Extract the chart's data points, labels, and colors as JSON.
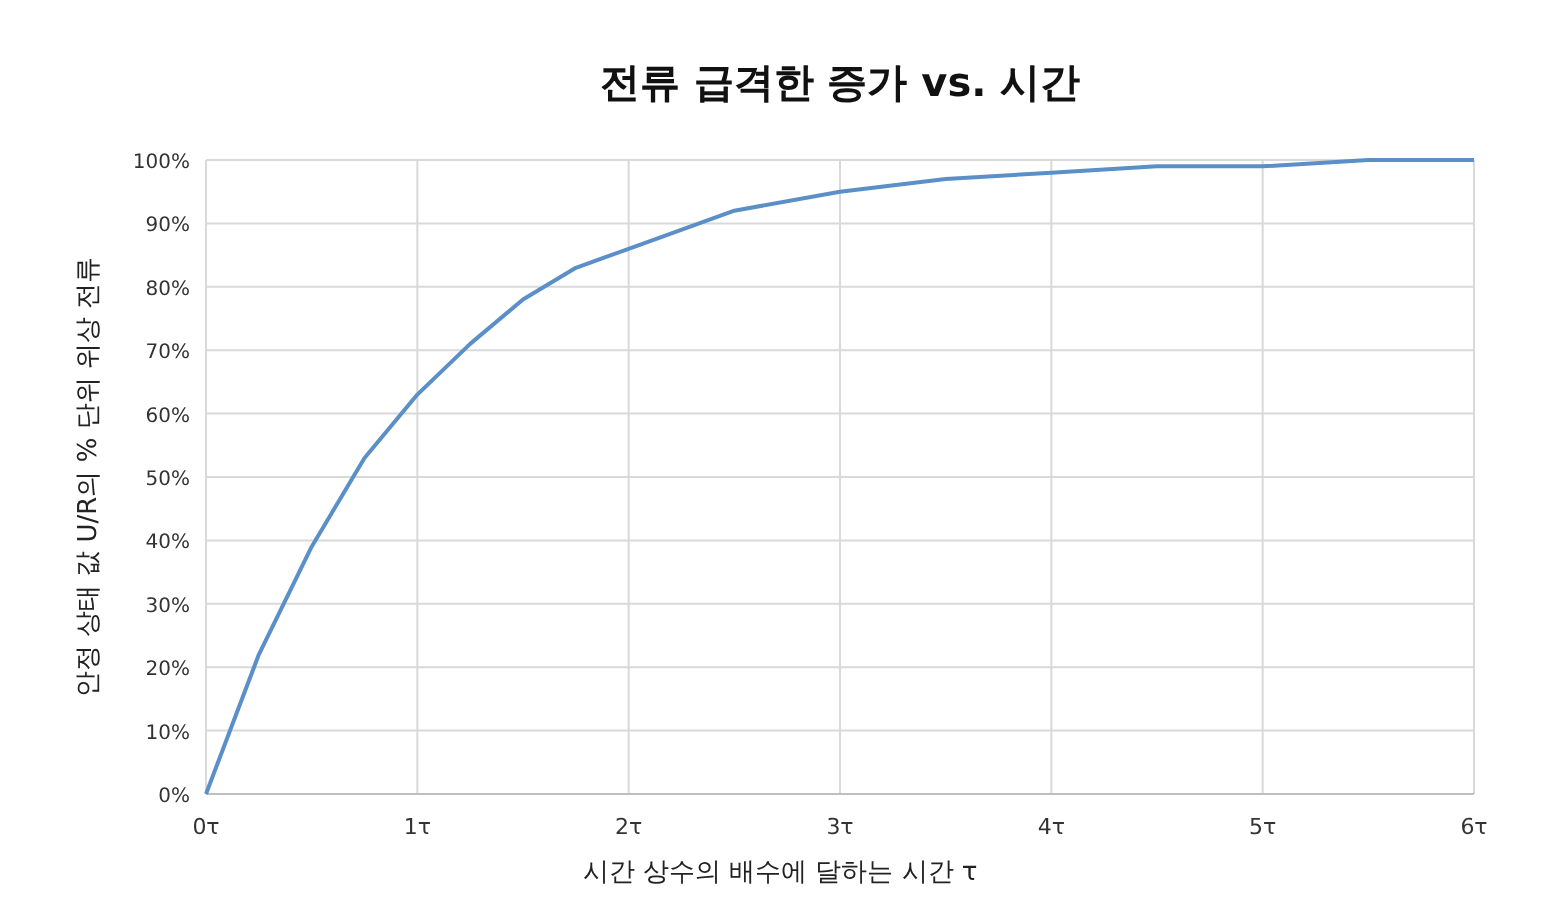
{
  "chart_data": {
    "type": "line",
    "title": "전류 급격한 증가 vs. 시간",
    "xlabel": "시간 상수의 배수에 달하는 시간  τ",
    "ylabel": "안정 상태 값 U/R의 % 단위 위상 전류",
    "x": [
      0,
      0.25,
      0.5,
      0.75,
      1,
      1.25,
      1.5,
      1.75,
      2,
      2.5,
      3,
      3.5,
      4,
      4.5,
      5,
      5.5,
      6
    ],
    "series": [
      {
        "color": "#5b8fc7",
        "values": [
          0,
          22,
          39,
          53,
          63,
          71,
          78,
          83,
          86,
          92,
          95,
          97,
          98,
          99,
          99,
          100,
          100
        ]
      }
    ],
    "xlim": [
      0,
      6
    ],
    "ylim": [
      0,
      100
    ],
    "xticks": [
      {
        "value": 0,
        "label": "0τ"
      },
      {
        "value": 1,
        "label": "1τ"
      },
      {
        "value": 2,
        "label": "2τ"
      },
      {
        "value": 3,
        "label": "3τ"
      },
      {
        "value": 4,
        "label": "4τ"
      },
      {
        "value": 5,
        "label": "5τ"
      },
      {
        "value": 6,
        "label": "6τ"
      }
    ],
    "yticks": [
      {
        "value": 0,
        "label": "0%"
      },
      {
        "value": 10,
        "label": "10%"
      },
      {
        "value": 20,
        "label": "20%"
      },
      {
        "value": 30,
        "label": "30%"
      },
      {
        "value": 40,
        "label": "40%"
      },
      {
        "value": 50,
        "label": "50%"
      },
      {
        "value": 60,
        "label": "60%"
      },
      {
        "value": 70,
        "label": "70%"
      },
      {
        "value": 80,
        "label": "80%"
      },
      {
        "value": 90,
        "label": "90%"
      },
      {
        "value": 100,
        "label": "100%"
      }
    ],
    "grid": true
  }
}
